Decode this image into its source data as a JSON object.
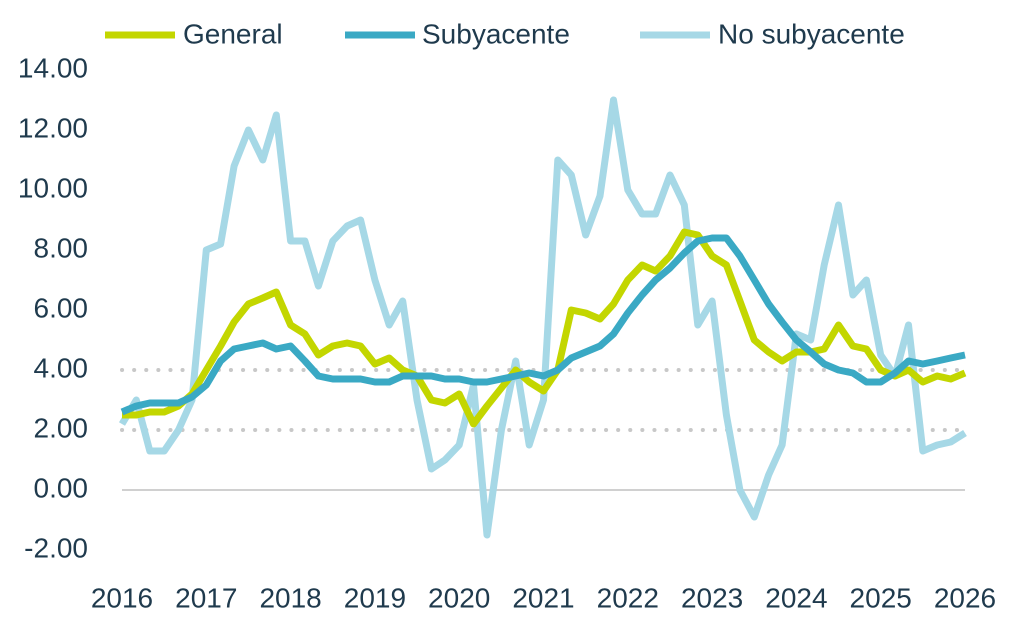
{
  "chart_data": {
    "type": "line",
    "x": [
      2016,
      2016.17,
      2016.33,
      2016.5,
      2016.67,
      2016.83,
      2017,
      2017.17,
      2017.33,
      2017.5,
      2017.67,
      2017.83,
      2018,
      2018.17,
      2018.33,
      2018.5,
      2018.67,
      2018.83,
      2019,
      2019.17,
      2019.33,
      2019.5,
      2019.67,
      2019.83,
      2020,
      2020.17,
      2020.33,
      2020.5,
      2020.67,
      2020.83,
      2021,
      2021.17,
      2021.33,
      2021.5,
      2021.67,
      2021.83,
      2022,
      2022.17,
      2022.33,
      2022.5,
      2022.67,
      2022.83,
      2023,
      2023.17,
      2023.33,
      2023.5,
      2023.67,
      2023.83,
      2024,
      2024.17,
      2024.33,
      2024.5,
      2024.67,
      2024.83,
      2025,
      2025.17,
      2025.33,
      2025.5,
      2025.67,
      2025.83,
      2026
    ],
    "series": [
      {
        "name": "General",
        "color": "#c3d600",
        "values": [
          2.5,
          2.5,
          2.6,
          2.6,
          2.8,
          3.2,
          4.0,
          4.8,
          5.6,
          6.2,
          6.4,
          6.6,
          5.5,
          5.2,
          4.5,
          4.8,
          4.9,
          4.8,
          4.2,
          4.4,
          4.0,
          3.8,
          3.0,
          2.9,
          3.2,
          2.2,
          2.8,
          3.4,
          4.0,
          3.6,
          3.3,
          4.0,
          6.0,
          5.9,
          5.7,
          6.2,
          7.0,
          7.5,
          7.3,
          7.8,
          8.6,
          8.5,
          7.8,
          7.5,
          6.3,
          5.0,
          4.6,
          4.3,
          4.6,
          4.6,
          4.7,
          5.5,
          4.8,
          4.7,
          4.0,
          3.8,
          4.0,
          3.6,
          3.8,
          3.7,
          3.9
        ]
      },
      {
        "name": "Subyacente",
        "color": "#3aa9c4",
        "values": [
          2.6,
          2.8,
          2.9,
          2.9,
          2.9,
          3.1,
          3.5,
          4.3,
          4.7,
          4.8,
          4.9,
          4.7,
          4.8,
          4.3,
          3.8,
          3.7,
          3.7,
          3.7,
          3.6,
          3.6,
          3.8,
          3.8,
          3.8,
          3.7,
          3.7,
          3.6,
          3.6,
          3.7,
          3.8,
          3.9,
          3.8,
          4.0,
          4.4,
          4.6,
          4.8,
          5.2,
          5.9,
          6.5,
          7.0,
          7.4,
          7.9,
          8.3,
          8.4,
          8.4,
          7.8,
          7.0,
          6.2,
          5.6,
          5.0,
          4.6,
          4.2,
          4.0,
          3.9,
          3.6,
          3.6,
          3.9,
          4.3,
          4.2,
          4.3,
          4.4,
          4.5
        ]
      },
      {
        "name": "No subyacente",
        "color": "#a6d8e6",
        "values": [
          2.2,
          3.0,
          1.3,
          1.3,
          2.0,
          3.0,
          8.0,
          8.2,
          10.8,
          12.0,
          11.0,
          12.5,
          8.3,
          8.3,
          6.8,
          8.3,
          8.8,
          9.0,
          7.0,
          5.5,
          6.3,
          3.0,
          0.7,
          1.0,
          1.5,
          3.5,
          -1.5,
          2.0,
          4.3,
          1.5,
          3.0,
          11.0,
          10.5,
          8.5,
          9.8,
          13.0,
          10.0,
          9.2,
          9.2,
          10.5,
          9.5,
          5.5,
          6.3,
          2.5,
          0,
          -0.9,
          0.5,
          1.5,
          5.2,
          5.0,
          7.5,
          9.5,
          6.5,
          7.0,
          4.5,
          3.8,
          5.5,
          1.3,
          1.5,
          1.6,
          1.9
        ]
      }
    ],
    "xlim": [
      2016,
      2026
    ],
    "xticks": [
      2016,
      2017,
      2018,
      2019,
      2020,
      2021,
      2022,
      2023,
      2024,
      2025,
      2026
    ],
    "ylim": [
      -2,
      14
    ],
    "yticks": [
      {
        "value": -2,
        "label": "-2.00"
      },
      {
        "value": 0,
        "label": "0.00"
      },
      {
        "value": 2,
        "label": "2.00"
      },
      {
        "value": 4,
        "label": "4.00"
      },
      {
        "value": 6,
        "label": "6.00"
      },
      {
        "value": 8,
        "label": "8.00"
      },
      {
        "value": 10,
        "label": "10.00"
      },
      {
        "value": 12,
        "label": "12.00"
      },
      {
        "value": 14,
        "label": "14.00"
      }
    ],
    "reference_lines": [
      2,
      4
    ],
    "legend": "top"
  }
}
